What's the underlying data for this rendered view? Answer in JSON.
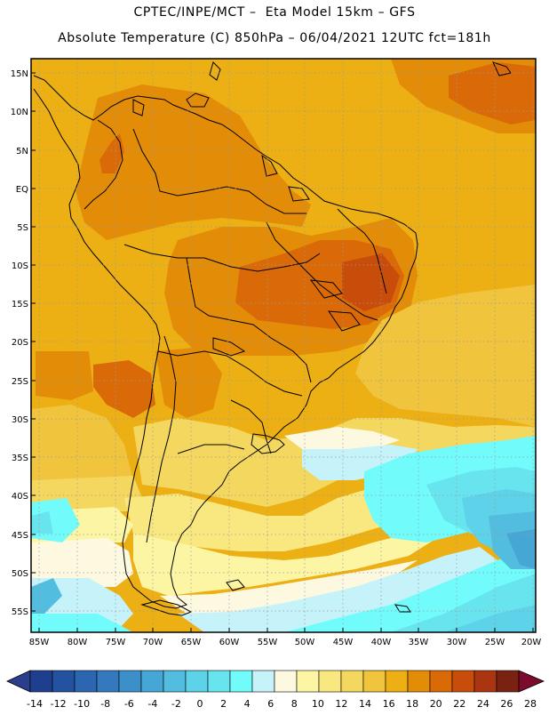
{
  "header": {
    "line1": "CPTEC/INPE/MCT –  Eta Model 15km – GFS",
    "line2": "Absolute Temperature (C) 850hPa – 06/04/2021 12UTC fct=181h"
  },
  "map": {
    "lat_labels": [
      "15N",
      "10N",
      "5N",
      "EQ",
      "5S",
      "10S",
      "15S",
      "20S",
      "25S",
      "30S",
      "35S",
      "40S",
      "45S",
      "50S",
      "55S"
    ],
    "lon_labels": [
      "85W",
      "80W",
      "75W",
      "70W",
      "65W",
      "60W",
      "55W",
      "50W",
      "45W",
      "40W",
      "35W",
      "30W",
      "25W",
      "20W"
    ]
  },
  "colorbar": {
    "labels": [
      "-14",
      "-12",
      "-10",
      "-8",
      "-6",
      "-4",
      "-2",
      "0",
      "2",
      "4",
      "6",
      "8",
      "10",
      "12",
      "14",
      "16",
      "18",
      "20",
      "22",
      "24",
      "26",
      "28"
    ],
    "colors": [
      "#1e3f8e",
      "#2352a0",
      "#2c66b0",
      "#3479bd",
      "#3d8fca",
      "#46a6d5",
      "#52bddf",
      "#5ed2e8",
      "#68e4ef",
      "#72fbfb",
      "#c6f2fa",
      "#fdf8e0",
      "#fcf5a4",
      "#f9e880",
      "#f4d75e",
      "#f0c43c",
      "#ecaf14",
      "#e38c08",
      "#da6a07",
      "#c84c0a",
      "#a93511",
      "#7a2212"
    ],
    "under_color": "#2a3e8c",
    "over_color": "#7d0b2c"
  }
}
